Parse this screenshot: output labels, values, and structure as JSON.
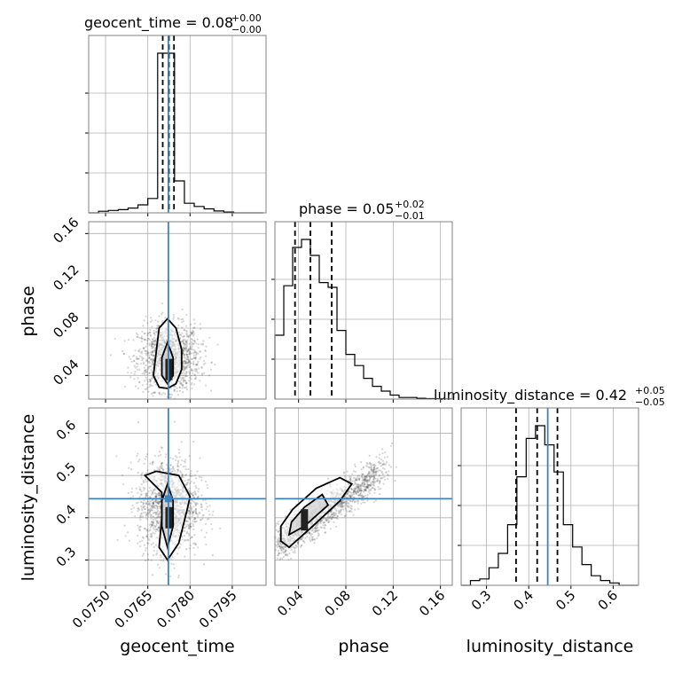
{
  "chart_data": {
    "type": "corner",
    "parameters": [
      "geocent_time",
      "phase",
      "luminosity_distance"
    ],
    "titles": [
      {
        "text": "geocent_time = 0.08",
        "plus": "+0.00",
        "minus": "−0.00"
      },
      {
        "text": "phase = 0.05",
        "plus": "+0.02",
        "minus": "−0.01"
      },
      {
        "text": "luminosity_distance = 0.42",
        "plus": "+0.05",
        "minus": "−0.05"
      }
    ],
    "axes": {
      "geocent_time": {
        "range": [
          0.0744,
          0.0807
        ],
        "ticks": [
          0.075,
          0.0765,
          0.078,
          0.0795
        ],
        "tick_labels": [
          "0.0750",
          "0.0765",
          "0.0780",
          "0.0795"
        ]
      },
      "phase": {
        "range": [
          0.02,
          0.17
        ],
        "ticks": [
          0.04,
          0.08,
          0.12,
          0.16
        ],
        "tick_labels": [
          "0.04",
          "0.08",
          "0.12",
          "0.16"
        ]
      },
      "luminosity_distance": {
        "range": [
          0.24,
          0.66
        ],
        "ticks": [
          0.3,
          0.4,
          0.5,
          0.6
        ],
        "tick_labels": [
          "0.3",
          "0.4",
          "0.5",
          "0.6"
        ]
      }
    },
    "truths": {
      "geocent_time": 0.07723,
      "phase": null,
      "luminosity_distance": 0.445
    },
    "quantiles": {
      "geocent_time": [
        0.07703,
        0.07725,
        0.07743
      ],
      "phase": [
        0.037,
        0.05,
        0.068
      ],
      "luminosity_distance": [
        0.37,
        0.42,
        0.468
      ]
    },
    "histograms": {
      "geocent_time": {
        "edges": [
          0.0744,
          0.07475,
          0.0751,
          0.07545,
          0.0758,
          0.07615,
          0.0765,
          0.07685,
          0.077,
          0.07745,
          0.0778,
          0.07815,
          0.0785,
          0.07885,
          0.0792,
          0.07955,
          0.0799,
          0.08025,
          0.0806
        ],
        "counts": [
          0,
          0.01,
          0.015,
          0.02,
          0.03,
          0.05,
          0.09,
          1.0,
          1.0,
          0.2,
          0.06,
          0.04,
          0.025,
          0.012,
          0.005,
          0,
          0,
          0
        ]
      },
      "phase": {
        "edges": [
          0.02,
          0.0275,
          0.035,
          0.0425,
          0.05,
          0.0575,
          0.065,
          0.0725,
          0.08,
          0.0875,
          0.095,
          0.1025,
          0.11,
          0.1175,
          0.125,
          0.1325,
          0.14,
          0.1475,
          0.155,
          0.1625,
          0.17
        ],
        "counts": [
          0.4,
          0.71,
          0.95,
          1.0,
          0.9,
          0.73,
          0.7,
          0.43,
          0.28,
          0.21,
          0.13,
          0.08,
          0.05,
          0.025,
          0.01,
          0.01,
          0.005,
          0.003,
          0.002,
          0.001
        ]
      },
      "luminosity_distance": {
        "edges": [
          0.24,
          0.262,
          0.284,
          0.306,
          0.328,
          0.35,
          0.372,
          0.394,
          0.416,
          0.438,
          0.46,
          0.482,
          0.504,
          0.526,
          0.548,
          0.57,
          0.592,
          0.614,
          0.636,
          0.658
        ],
        "counts": [
          0.0,
          0.03,
          0.04,
          0.11,
          0.2,
          0.38,
          0.68,
          0.92,
          1.0,
          0.88,
          0.71,
          0.38,
          0.24,
          0.13,
          0.06,
          0.03,
          0.015,
          0.0,
          0.0
        ]
      }
    },
    "contours": {
      "phase_vs_geocent_time": [
        [
          [
            0.0772,
            0.029
          ],
          [
            0.0775,
            0.033
          ],
          [
            0.0777,
            0.045
          ],
          [
            0.0777,
            0.062
          ],
          [
            0.0775,
            0.08
          ],
          [
            0.0772,
            0.088
          ],
          [
            0.0769,
            0.08
          ],
          [
            0.0768,
            0.06
          ],
          [
            0.0767,
            0.04
          ],
          [
            0.0769,
            0.03
          ],
          [
            0.0772,
            0.029
          ]
        ],
        [
          [
            0.0772,
            0.033
          ],
          [
            0.0774,
            0.04
          ],
          [
            0.0774,
            0.055
          ],
          [
            0.0772,
            0.068
          ],
          [
            0.077,
            0.055
          ],
          [
            0.077,
            0.04
          ],
          [
            0.0772,
            0.033
          ]
        ]
      ],
      "luminosity_distance_vs_geocent_time": [
        [
          [
            0.0772,
            0.3
          ],
          [
            0.0776,
            0.34
          ],
          [
            0.0779,
            0.42
          ],
          [
            0.078,
            0.45
          ],
          [
            0.0776,
            0.5
          ],
          [
            0.0768,
            0.51
          ],
          [
            0.0764,
            0.5
          ],
          [
            0.077,
            0.46
          ],
          [
            0.077,
            0.4
          ],
          [
            0.0769,
            0.33
          ],
          [
            0.0772,
            0.3
          ]
        ],
        [
          [
            0.0772,
            0.33
          ],
          [
            0.0774,
            0.38
          ],
          [
            0.0774,
            0.44
          ],
          [
            0.0772,
            0.48
          ],
          [
            0.077,
            0.44
          ],
          [
            0.077,
            0.38
          ],
          [
            0.0772,
            0.33
          ]
        ]
      ],
      "luminosity_distance_vs_phase": [
        [
          [
            0.025,
            0.345
          ],
          [
            0.032,
            0.33
          ],
          [
            0.05,
            0.375
          ],
          [
            0.075,
            0.44
          ],
          [
            0.085,
            0.48
          ],
          [
            0.075,
            0.495
          ],
          [
            0.055,
            0.47
          ],
          [
            0.035,
            0.42
          ],
          [
            0.025,
            0.38
          ],
          [
            0.025,
            0.345
          ]
        ],
        [
          [
            0.032,
            0.36
          ],
          [
            0.045,
            0.38
          ],
          [
            0.065,
            0.43
          ],
          [
            0.06,
            0.455
          ],
          [
            0.045,
            0.425
          ],
          [
            0.034,
            0.39
          ],
          [
            0.032,
            0.36
          ]
        ]
      ]
    }
  }
}
